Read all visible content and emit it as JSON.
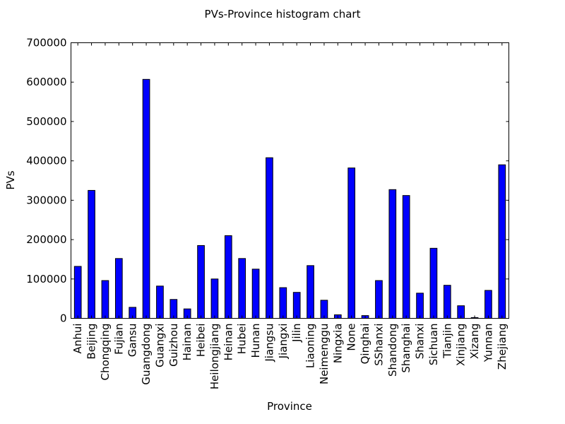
{
  "chart_data": {
    "type": "bar",
    "title": "PVs-Province histogram chart",
    "xlabel": "Province",
    "ylabel": "PVs",
    "ylim": [
      0,
      700000
    ],
    "yticks": [
      0,
      100000,
      200000,
      300000,
      400000,
      500000,
      600000,
      700000
    ],
    "ytick_labels": [
      "0",
      "100000",
      "200000",
      "300000",
      "400000",
      "500000",
      "600000",
      "700000"
    ],
    "grid": false,
    "bar_color": "#0000ff",
    "categories": [
      "Anhui",
      "Beijing",
      "Chongqing",
      "Fujian",
      "Gansu",
      "Guangdong",
      "Guangxi",
      "Guizhou",
      "Hainan",
      "Heibei",
      "Heilongjiang",
      "Heinan",
      "Hubei",
      "Hunan",
      "Jiangsu",
      "Jiangxi",
      "Jilin",
      "Liaoning",
      "Neimenggu",
      "Ningxia",
      "None",
      "Qinghai",
      "SShanxi",
      "Shandong",
      "Shanghai",
      "Shanxi",
      "Sichuan",
      "Tianjin",
      "Xinjiang",
      "Xizang",
      "Yunnan",
      "Zhejiang"
    ],
    "values": [
      132000,
      325000,
      96000,
      152000,
      28000,
      607000,
      82000,
      48000,
      24000,
      185000,
      100000,
      210000,
      152000,
      125000,
      408000,
      78000,
      66000,
      134000,
      46000,
      9000,
      382000,
      7000,
      96000,
      327000,
      312000,
      64000,
      178000,
      84000,
      32000,
      2000,
      71000,
      390000
    ]
  }
}
